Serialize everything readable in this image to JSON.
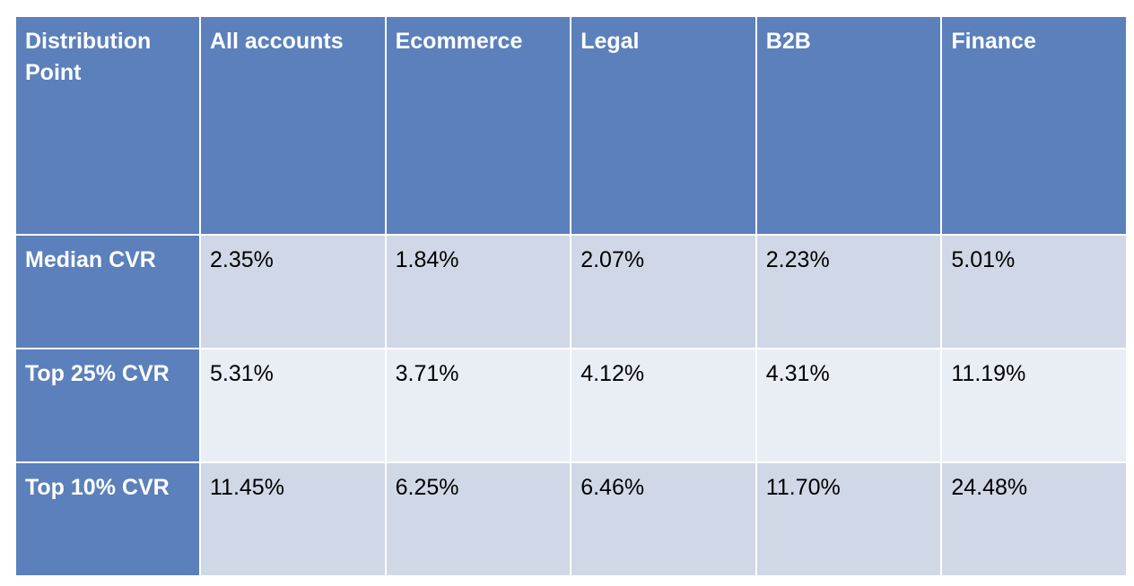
{
  "table": {
    "headers": [
      "Distribution Point",
      "All accounts",
      "Ecommerce",
      "Legal",
      "B2B",
      "Finance"
    ],
    "rows": [
      {
        "label": "Median CVR",
        "values": [
          "2.35%",
          "1.84%",
          "2.07%",
          "2.23%",
          "5.01%"
        ]
      },
      {
        "label": "Top 25% CVR",
        "values": [
          "5.31%",
          "3.71%",
          "4.12%",
          "4.31%",
          "11.19%"
        ]
      },
      {
        "label": "Top 10% CVR",
        "values": [
          "11.45%",
          "6.25%",
          "6.46%",
          "11.70%",
          "24.48%"
        ]
      }
    ]
  },
  "colors": {
    "header_bg": "#5b80bb",
    "row_band_dark": "#d0d8e7",
    "row_band_light": "#e9edf4"
  }
}
